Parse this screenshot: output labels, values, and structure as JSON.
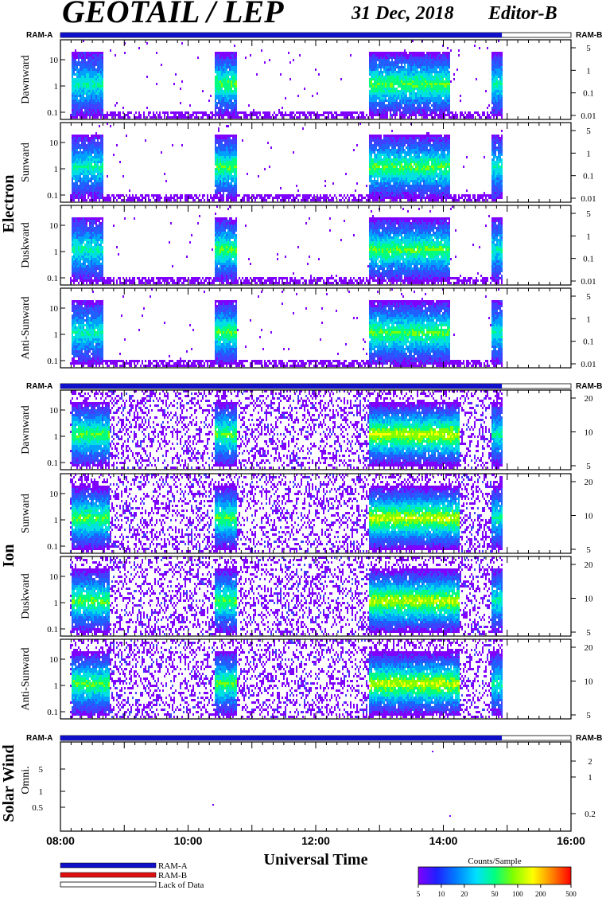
{
  "header": {
    "title": "GEOTAIL / LEP",
    "date": "31 Dec, 2018",
    "editor": "Editor-B"
  },
  "groups": {
    "electron": "Electron",
    "ion": "Ion",
    "solar_wind": "Solar Wind"
  },
  "ram": {
    "a": "RAM-A",
    "b": "RAM-B"
  },
  "panel_labels": {
    "electron": [
      "Dawnward",
      "Sunward",
      "Duskward",
      "Anti-Sunward"
    ],
    "ion": [
      "Dawnward",
      "Sunward",
      "Duskward",
      "Anti-Sunward"
    ],
    "sw": "Omni."
  },
  "axis": {
    "xlabel": "Universal Time",
    "time_ticks": [
      "08:00",
      "10:00",
      "12:00",
      "14:00",
      "16:00"
    ],
    "electron_left_ticks": [
      "10",
      "1",
      "0.1"
    ],
    "electron_right_ticks": [
      "5",
      "1",
      "0.1",
      "0.01"
    ],
    "ion_left_ticks": [
      "10",
      "1",
      "0.1"
    ],
    "ion_right_ticks": [
      "20",
      "10",
      "5"
    ],
    "sw_left_ticks": [
      "5",
      "1",
      "0.5"
    ],
    "sw_right_ticks": [
      "2",
      "1",
      "0.2"
    ]
  },
  "legend": {
    "ram_a": "RAM-A",
    "ram_b": "RAM-B",
    "lack": "Lack of Data",
    "colorbar_title": "Counts/Sample",
    "colorbar_ticks": [
      "5",
      "10",
      "20",
      "50",
      "100",
      "200",
      "500"
    ]
  },
  "colors": {
    "ram_a": "#1010c8",
    "ram_b": "#e01010",
    "colormap": [
      "#8000ff",
      "#4040ff",
      "#2060ff",
      "#00a0ff",
      "#00e0e0",
      "#00ff80",
      "#80ff00",
      "#ffff00",
      "#ff8000",
      "#ff0000"
    ]
  },
  "chart_data": {
    "type": "heatmap",
    "x_range": [
      "08:00",
      "16:00"
    ],
    "data_end": "14:55",
    "electron_activity": [
      {
        "start": "08:10",
        "end": "08:40",
        "peak": "medium"
      },
      {
        "start": "10:25",
        "end": "10:45",
        "peak": "high"
      },
      {
        "start": "12:50",
        "end": "14:05",
        "peak": "high"
      },
      {
        "start": "14:45",
        "end": "14:55",
        "peak": "medium"
      }
    ],
    "ion_activity": [
      {
        "start": "08:10",
        "end": "08:45",
        "peak": "high"
      },
      {
        "start": "10:25",
        "end": "10:45",
        "peak": "high"
      },
      {
        "start": "12:50",
        "end": "14:15",
        "peak": "very high"
      },
      {
        "start": "14:45",
        "end": "14:55",
        "peak": "medium"
      }
    ]
  }
}
